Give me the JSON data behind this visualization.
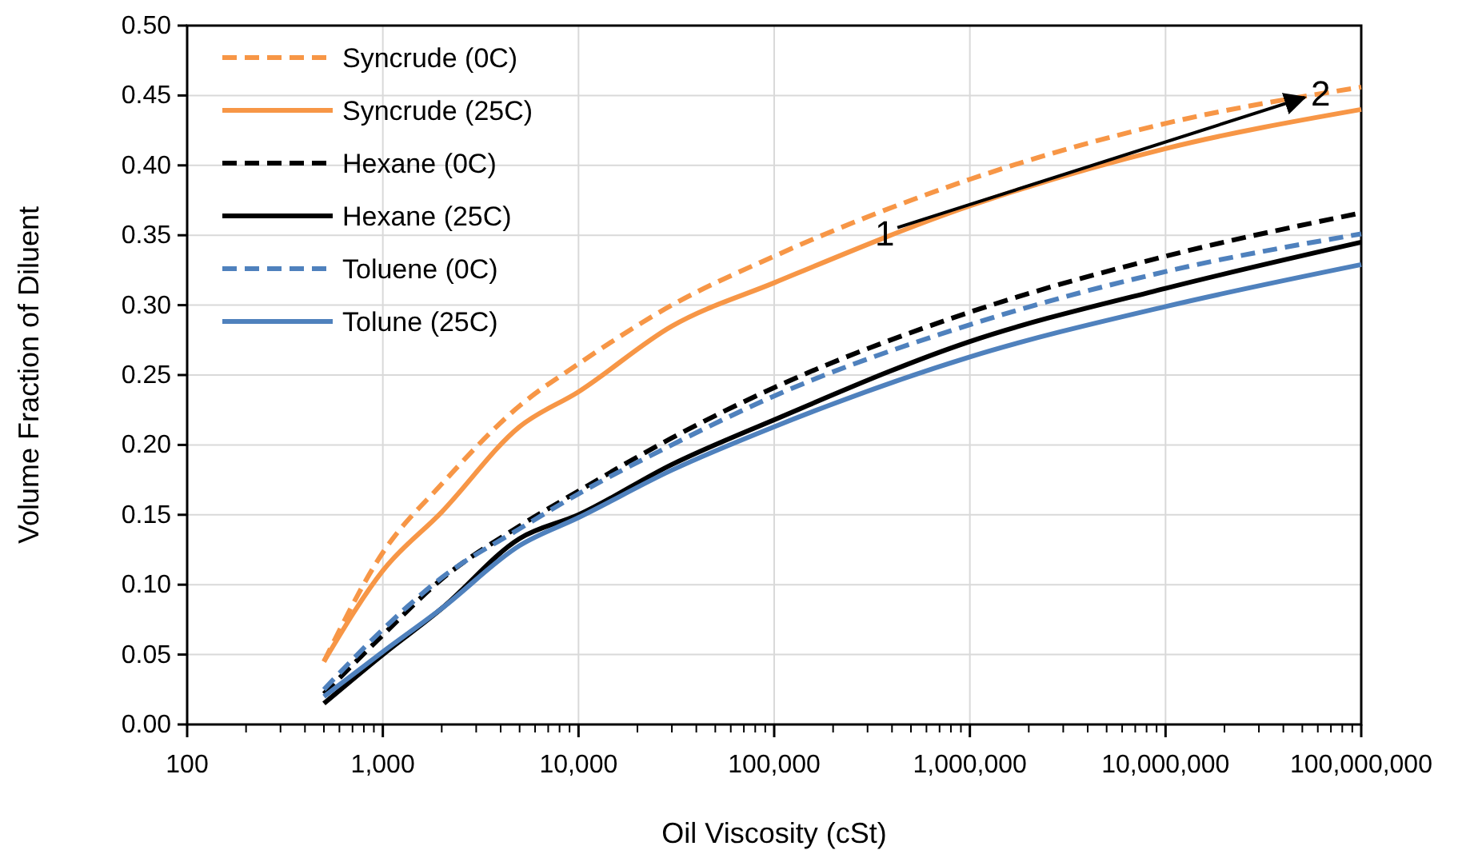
{
  "chart_data": {
    "type": "line",
    "xlabel": "Oil Viscosity (cSt)",
    "ylabel": "Volume Fraction of Diluent",
    "log": "x",
    "grid": true,
    "legend": "top left",
    "xlim": [
      100,
      100000000
    ],
    "ylim": [
      0,
      0.5
    ],
    "xticks": [
      100,
      {
        "value": 1000,
        "label": "1,000"
      },
      {
        "value": 10000,
        "label": "10,000"
      },
      {
        "value": 100000,
        "label": "100,000"
      },
      {
        "value": 1000000,
        "label": "1,000,000"
      },
      {
        "value": 10000000,
        "label": "10,000,000"
      },
      {
        "value": 100000000,
        "label": "100,000,000"
      }
    ],
    "yticks": [
      {
        "value": 0,
        "label": "0.00"
      },
      0.05,
      {
        "value": 0.1,
        "label": "0.10"
      },
      0.15,
      {
        "value": 0.2,
        "label": "0.20"
      },
      0.25,
      {
        "value": 0.3,
        "label": "0.30"
      },
      0.35,
      {
        "value": 0.4,
        "label": "0.40"
      },
      0.45,
      {
        "value": 0.5,
        "label": "0.50"
      }
    ],
    "x": [
      500,
      1000,
      2000,
      5000,
      10000,
      30000,
      100000,
      1000000,
      10000000,
      100000000
    ],
    "series": [
      {
        "name": "Syncrude (0C)",
        "color": "#f79646",
        "line_style": "dashed",
        "values": [
          0.045,
          0.123,
          0.172,
          0.228,
          0.258,
          0.3,
          0.335,
          0.39,
          0.43,
          0.456
        ]
      },
      {
        "name": "Syncrude (25C)",
        "color": "#f79646",
        "line_style": "solid",
        "values": [
          0.045,
          0.11,
          0.152,
          0.213,
          0.238,
          0.285,
          0.316,
          0.371,
          0.412,
          0.44
        ]
      },
      {
        "name": "Hexane (0C)",
        "color": "#000000",
        "line_style": "dashed",
        "values": [
          0.022,
          0.064,
          0.104,
          0.142,
          0.167,
          0.205,
          0.241,
          0.295,
          0.335,
          0.366
        ]
      },
      {
        "name": "Hexane (25C)",
        "color": "#000000",
        "line_style": "solid",
        "values": [
          0.015,
          0.05,
          0.083,
          0.133,
          0.15,
          0.186,
          0.218,
          0.274,
          0.312,
          0.345
        ]
      },
      {
        "name": "Toluene (0C)",
        "color": "#4f81bd",
        "line_style": "dashed",
        "values": [
          0.025,
          0.068,
          0.105,
          0.14,
          0.165,
          0.2,
          0.235,
          0.286,
          0.324,
          0.351
        ]
      },
      {
        "name": "Tolune (25C)",
        "color": "#4f81bd",
        "line_style": "solid",
        "values": [
          0.02,
          0.052,
          0.083,
          0.128,
          0.148,
          0.182,
          0.213,
          0.263,
          0.299,
          0.329
        ]
      }
    ],
    "annotations": [
      {
        "text": "1",
        "x": 367000,
        "y": 0.352
      },
      {
        "text": "2",
        "x": 62000000,
        "y": 0.452
      }
    ]
  }
}
